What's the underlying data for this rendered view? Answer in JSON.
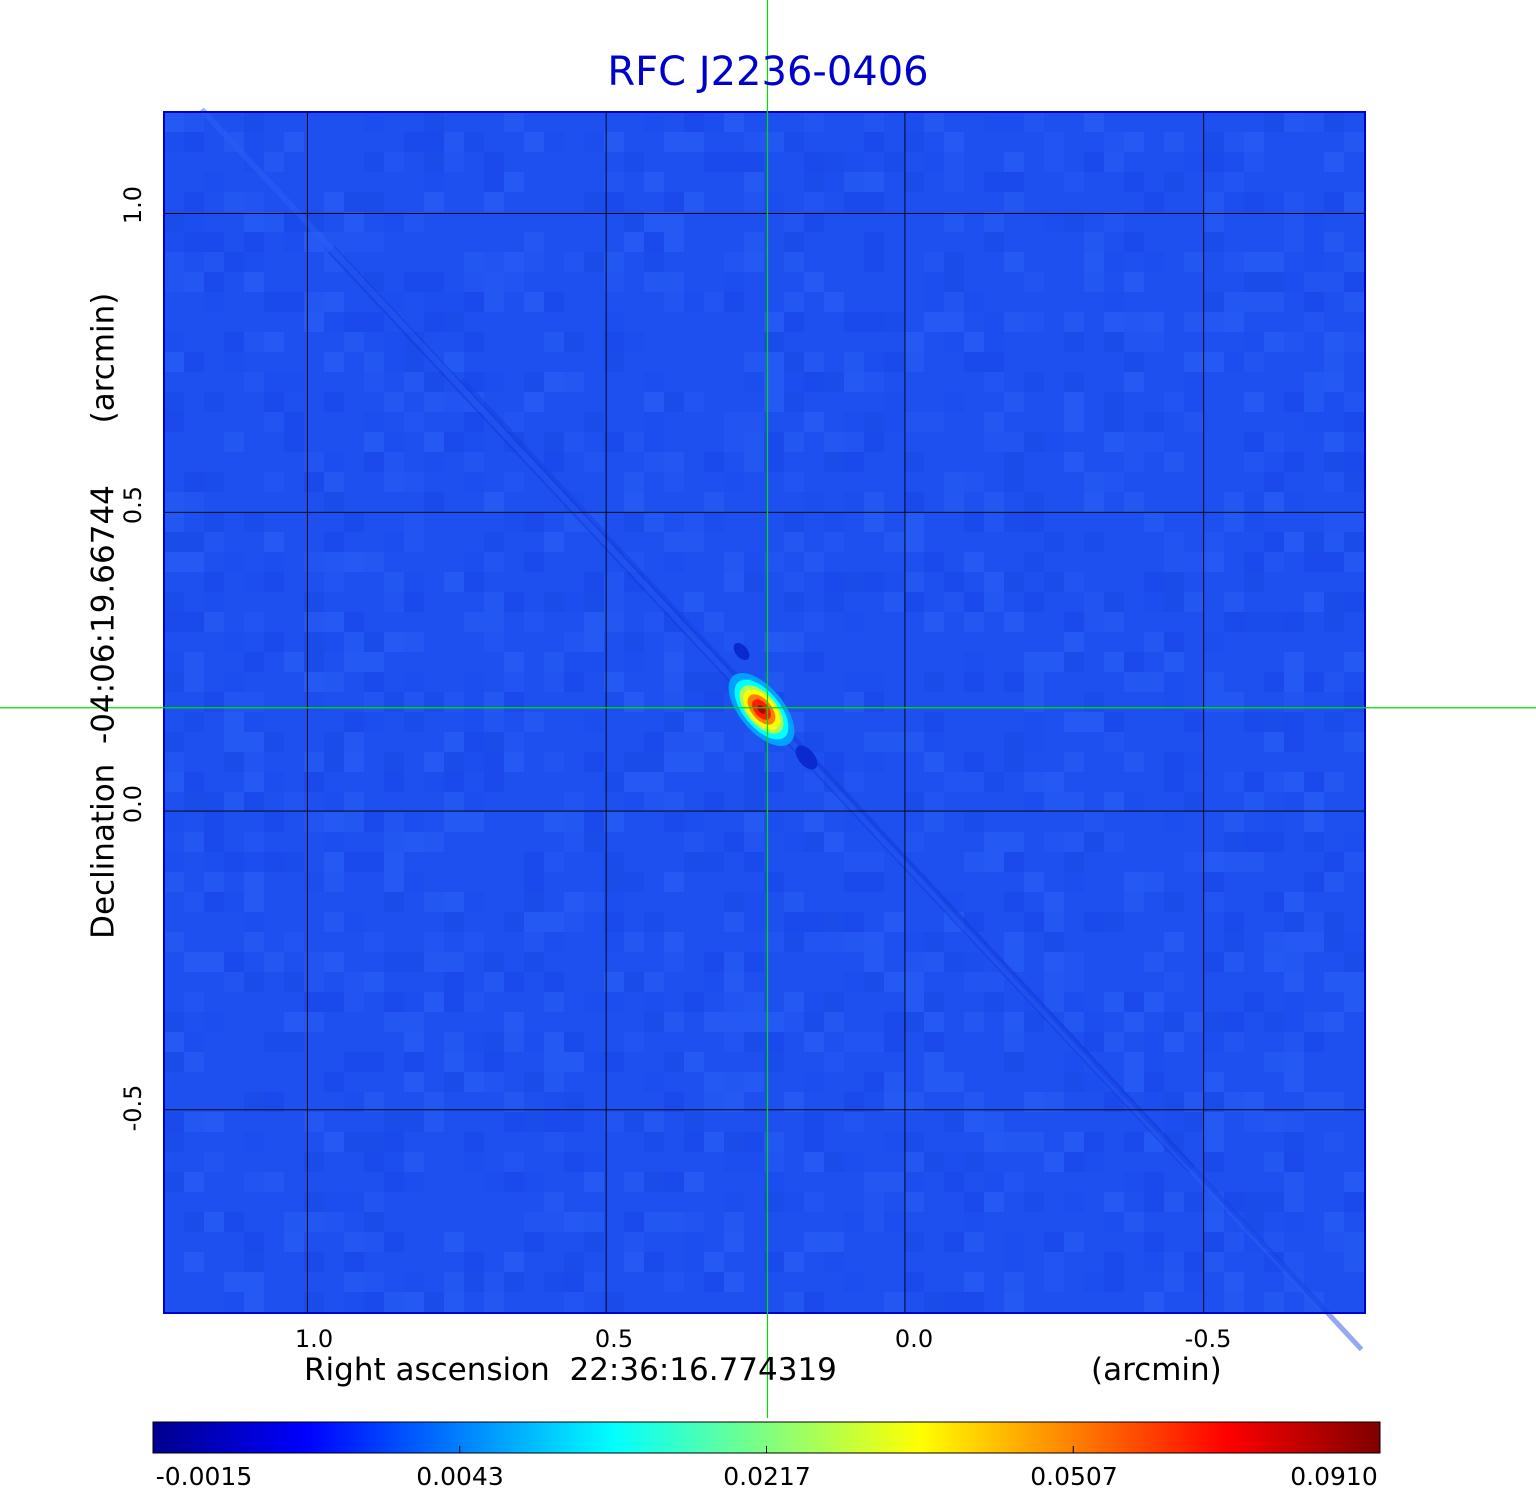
{
  "chart_data": {
    "type": "heatmap",
    "title": "RFC J2236-0406",
    "xlabel": "Right ascension  22:36:16.774319",
    "xunit": "(arcmin)",
    "ylabel": "Declination  -04:06:19.66744",
    "yunit": "(arcmin)",
    "x_direction": "reversed",
    "xlim": [
      1.24,
      -0.77
    ],
    "ylim": [
      -0.84,
      1.17
    ],
    "x_ticks": [
      1.0,
      0.5,
      0.0,
      -0.5
    ],
    "x_tick_labels": [
      "1.0",
      "0.5",
      "0.0",
      "-0.5"
    ],
    "y_ticks": [
      1.0,
      0.5,
      0.0,
      -0.5
    ],
    "y_tick_labels": [
      "1.0",
      "0.5",
      "0.0",
      "-0.5"
    ],
    "grid": true,
    "colormap": "jet",
    "colorbar": {
      "placement": "bottom",
      "ticks": [
        -0.0015,
        0.0043,
        0.0217,
        0.0507,
        0.091
      ],
      "tick_labels": [
        "-0.0015",
        "0.0043",
        "0.0217",
        "0.0507",
        "0.0910"
      ]
    },
    "source": {
      "x": 0.24,
      "y": 0.17,
      "peak": 0.091
    },
    "crosshair": {
      "x": 0.23,
      "y": 0.173,
      "color": "#00dd00"
    },
    "background_color": "#1e50f0",
    "frame_color": "#0000cc"
  }
}
